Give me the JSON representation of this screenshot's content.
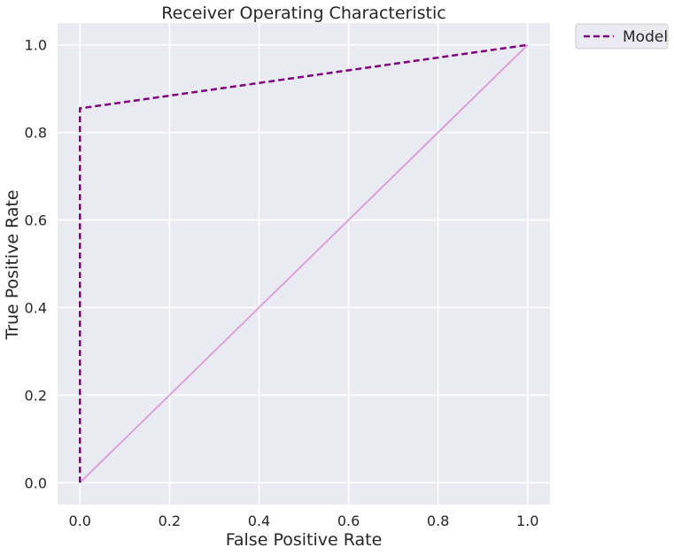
{
  "chart_data": {
    "type": "line",
    "title": "Receiver Operating Characteristic",
    "xlabel": "False Positive Rate",
    "ylabel": "True Positive Rate",
    "xlim": [
      -0.05,
      1.05
    ],
    "ylim": [
      -0.05,
      1.05
    ],
    "xticks": [
      0.0,
      0.2,
      0.4,
      0.6,
      0.8,
      1.0
    ],
    "yticks": [
      0.0,
      0.2,
      0.4,
      0.6,
      0.8,
      1.0
    ],
    "xtick_labels": [
      "0.0",
      "0.2",
      "0.4",
      "0.6",
      "0.8",
      "1.0"
    ],
    "ytick_labels": [
      "0.0",
      "0.2",
      "0.4",
      "0.6",
      "0.8",
      "1.0"
    ],
    "grid": true,
    "legend_position": "outside-top-right",
    "series": [
      {
        "name": "Model",
        "style": "dashed",
        "color": "#800080",
        "x": [
          0.0,
          0.0,
          1.0
        ],
        "y": [
          0.0,
          0.855,
          1.0
        ]
      },
      {
        "style": "solid",
        "color": "#DDA0DD",
        "x": [
          0.0,
          1.0
        ],
        "y": [
          0.0,
          1.0
        ]
      }
    ]
  },
  "colors": {
    "plot_background": "#EAEAF2",
    "grid": "#FFFFFF"
  }
}
